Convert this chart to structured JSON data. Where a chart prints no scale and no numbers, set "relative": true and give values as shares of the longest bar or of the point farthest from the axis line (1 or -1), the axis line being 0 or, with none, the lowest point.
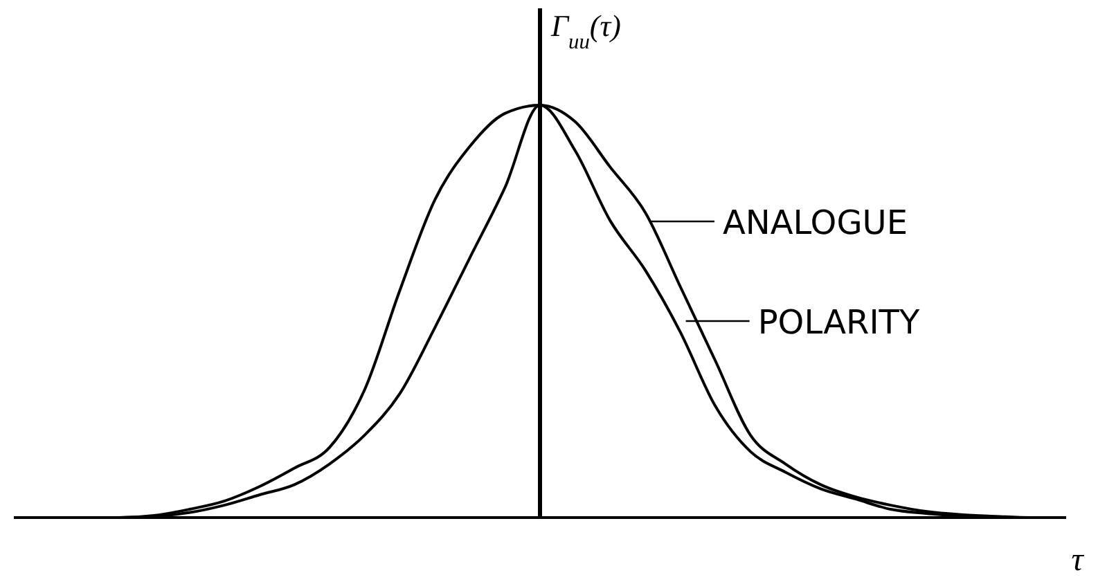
{
  "chart_data": {
    "type": "line",
    "relative": true,
    "xlabel": "τ",
    "ylabel": "Γ$_{uu}$(τ)",
    "marker": "none",
    "line_style": "solid",
    "legend": "right",
    "categories": [
      null,
      null,
      null,
      null,
      null,
      null,
      null,
      null,
      null,
      null,
      null,
      null,
      null,
      null,
      null,
      null,
      null,
      null,
      null,
      null,
      null,
      null,
      null,
      null,
      null,
      null,
      null,
      null,
      null,
      null,
      null
    ],
    "series": [
      {
        "name": "ANALOGUE",
        "color": "#000000",
        "values": [
          0,
          0,
          0,
          0,
          0.005,
          0.02,
          0.04,
          0.075,
          0.12,
          0.17,
          0.31,
          0.55,
          0.77,
          0.9,
          0.98,
          1,
          0.96,
          0.85,
          0.74,
          0.56,
          0.38,
          0.2,
          0.13,
          0.08,
          0.05,
          0.03,
          0.015,
          0.007,
          0.003,
          0,
          0
        ]
      },
      {
        "name": "POLARITY",
        "color": "#000000",
        "values": [
          0,
          0,
          0,
          0,
          0.003,
          0.012,
          0.03,
          0.055,
          0.08,
          0.13,
          0.2,
          0.3,
          0.46,
          0.63,
          0.8,
          1,
          0.89,
          0.72,
          0.6,
          0.45,
          0.27,
          0.16,
          0.11,
          0.07,
          0.045,
          0.02,
          0.01,
          0.004,
          0,
          0,
          0
        ]
      }
    ]
  }
}
